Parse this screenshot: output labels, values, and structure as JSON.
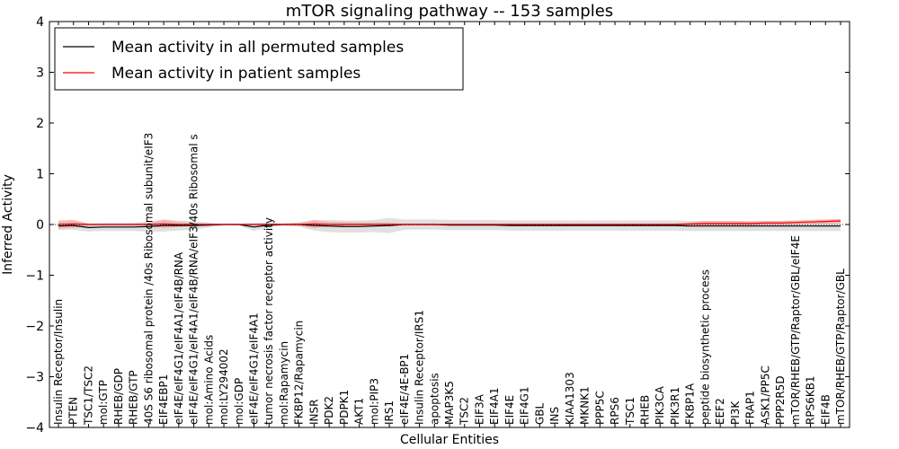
{
  "chart_data": {
    "type": "line",
    "title": "mTOR signaling pathway -- 153 samples",
    "xlabel": "Cellular Entities",
    "ylabel": "Inferred Activity",
    "ylim": [
      -4,
      4
    ],
    "yticks": [
      -4,
      -3,
      -2,
      -1,
      0,
      1,
      2,
      3,
      4
    ],
    "legend_position": "top-left",
    "categories": [
      "Insulin Receptor/Insulin",
      "PTEN",
      "TSC1/TSC2",
      "mol:GTP",
      "RHEB/GDP",
      "RHEB/GTP",
      "40S S6 ribosomal protein /40s Ribosomal subunit/eIF3",
      "EIF4EBP1",
      "eIF4E/eIF4G1/eIF4A1/eIF4B/RNA",
      "eIF4E/eIF4G1/eIF4A1/eIF4B/RNA/eIF3/40s Ribosomal s",
      "mol:Amino Acids",
      "mol:LY294002",
      "mol:GDP",
      "eIF4E/eIF4G1/eIF4A1",
      "tumor necrosis factor receptor activity",
      "mol:Rapamycin",
      "FKBP12/Rapamycin",
      "INSR",
      "PDK2",
      "PDPK1",
      "AKT1",
      "mol:PIP3",
      "IRS1",
      "eIF4E/4E-BP1",
      "Insulin Receptor/IRS1",
      "apoptosis",
      "MAP3K5",
      "TSC2",
      "EIF3A",
      "EIF4A1",
      "EIF4E",
      "EIF4G1",
      "GBL",
      "INS",
      "KIAA1303",
      "MKNK1",
      "PPP5C",
      "RPS6",
      "TSC1",
      "RHEB",
      "PIK3CA",
      "PIK3R1",
      "FKBP1A",
      "peptide biosynthetic process",
      "EEF2",
      "PI3K",
      "FRAP1",
      "ASK1/PP5C",
      "PPP2R5D",
      "mTOR/RHEB/GTP/Raptor/GBL/eIF4E",
      "RPS6KB1",
      "EIF4B",
      "mTOR/RHEB/GTP/Raptor/GBL"
    ],
    "series": [
      {
        "name": "Mean activity in all permuted samples",
        "color": "#000000",
        "band_color": "#cccccc",
        "values": [
          -0.03,
          -0.02,
          -0.06,
          -0.05,
          -0.05,
          -0.05,
          -0.04,
          -0.02,
          -0.02,
          -0.02,
          -0.01,
          0.0,
          0.0,
          -0.05,
          -0.01,
          0.0,
          0.0,
          -0.02,
          -0.03,
          -0.04,
          -0.04,
          -0.03,
          -0.02,
          0.0,
          0.0,
          0.0,
          -0.01,
          -0.01,
          -0.01,
          -0.01,
          -0.02,
          -0.02,
          -0.02,
          -0.02,
          -0.02,
          -0.02,
          -0.02,
          -0.02,
          -0.02,
          -0.02,
          -0.02,
          -0.02,
          -0.03,
          -0.03,
          -0.03,
          -0.03,
          -0.03,
          -0.03,
          -0.03,
          -0.03,
          -0.03,
          -0.03,
          -0.03
        ],
        "band": [
          0.08,
          0.08,
          0.08,
          0.08,
          0.08,
          0.08,
          0.1,
          0.12,
          0.1,
          0.08,
          0.05,
          0.02,
          0.02,
          0.08,
          0.05,
          0.02,
          0.04,
          0.1,
          0.12,
          0.12,
          0.12,
          0.12,
          0.15,
          0.1,
          0.1,
          0.1,
          0.1,
          0.1,
          0.1,
          0.1,
          0.1,
          0.1,
          0.1,
          0.1,
          0.1,
          0.1,
          0.1,
          0.1,
          0.1,
          0.1,
          0.1,
          0.1,
          0.1,
          0.1,
          0.1,
          0.1,
          0.1,
          0.1,
          0.1,
          0.1,
          0.1,
          0.1,
          0.1
        ]
      },
      {
        "name": "Mean activity in patient samples",
        "color": "#ff0000",
        "band_color": "#f4a0a0",
        "values": [
          0.0,
          0.01,
          0.0,
          0.0,
          0.0,
          0.0,
          0.0,
          0.01,
          0.0,
          0.0,
          0.0,
          0.0,
          0.0,
          0.0,
          0.0,
          0.0,
          0.0,
          0.01,
          0.0,
          0.0,
          0.0,
          0.0,
          0.0,
          0.0,
          0.0,
          0.0,
          0.0,
          0.0,
          0.0,
          0.0,
          0.0,
          0.0,
          0.0,
          0.0,
          0.0,
          0.0,
          0.0,
          0.0,
          0.0,
          0.0,
          0.0,
          0.0,
          0.01,
          0.02,
          0.02,
          0.02,
          0.02,
          0.03,
          0.03,
          0.04,
          0.05,
          0.06,
          0.07
        ],
        "band": [
          0.08,
          0.08,
          0.02,
          0.02,
          0.02,
          0.02,
          0.03,
          0.08,
          0.05,
          0.03,
          0.02,
          0.01,
          0.01,
          0.02,
          0.02,
          0.02,
          0.03,
          0.08,
          0.05,
          0.05,
          0.04,
          0.04,
          0.04,
          0.02,
          0.02,
          0.02,
          0.02,
          0.02,
          0.02,
          0.02,
          0.02,
          0.02,
          0.02,
          0.02,
          0.02,
          0.02,
          0.02,
          0.02,
          0.02,
          0.02,
          0.02,
          0.02,
          0.03,
          0.05,
          0.05,
          0.05,
          0.04,
          0.04,
          0.04,
          0.04,
          0.04,
          0.04,
          0.04
        ]
      }
    ]
  }
}
